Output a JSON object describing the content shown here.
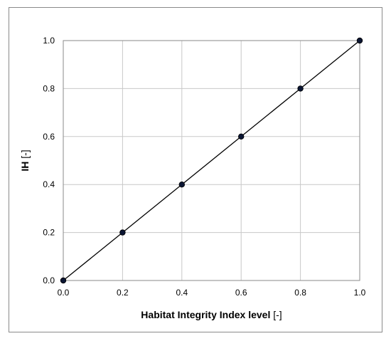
{
  "chart_data": {
    "type": "line",
    "title": "",
    "xlabel": "Habitat Integrity Index level",
    "xlabel_unit": "[-]",
    "ylabel": "IH",
    "ylabel_unit": "[-]",
    "xlim": [
      0,
      1
    ],
    "ylim": [
      0,
      1
    ],
    "x_ticks": [
      "0.0",
      "0.2",
      "0.4",
      "0.6",
      "0.8",
      "1.0"
    ],
    "y_ticks": [
      "0.0",
      "0.2",
      "0.4",
      "0.6",
      "0.8",
      "1.0"
    ],
    "grid": true,
    "legend": "none",
    "series": [
      {
        "x": [
          0,
          0.2,
          0.4,
          0.6,
          0.8,
          1.0
        ],
        "y": [
          0,
          0.2,
          0.4,
          0.6,
          0.8,
          1.0
        ],
        "color": "#000000",
        "marker": "circle",
        "marker_color": "#0b1633"
      }
    ]
  }
}
